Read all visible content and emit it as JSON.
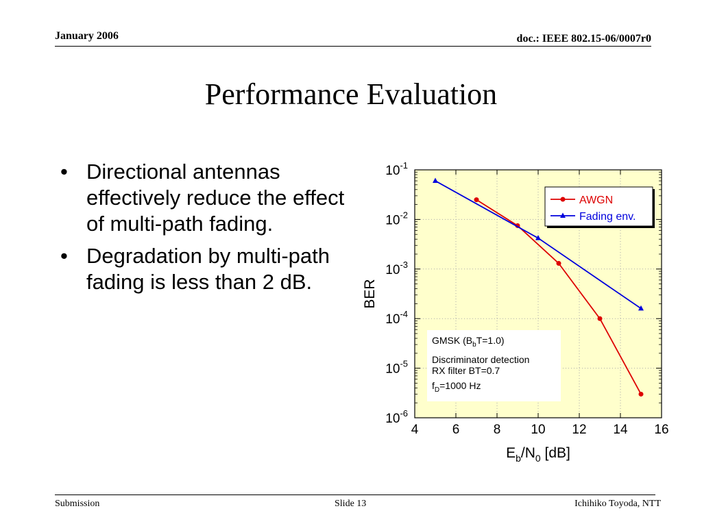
{
  "header": {
    "date": "January 2006",
    "doc": "doc.: IEEE 802.15-06/0007r0"
  },
  "slide": {
    "title": "Performance Evaluation",
    "bullets": [
      "Directional antennas effectively reduce the effect of multi-path fading.",
      "Degradation by multi-path fading is less than 2 dB."
    ]
  },
  "footer": {
    "left": "Submission",
    "center": "Slide 13",
    "right": "Ichihiko Toyoda, NTT"
  },
  "colors": {
    "plot_bg": "#ffffcc",
    "awgn": "#dd0000",
    "fading": "#0000dd"
  },
  "chart_data": {
    "type": "line",
    "xlabel": "Eb/N0 [dB]",
    "ylabel": "BER",
    "xlim": [
      4,
      16
    ],
    "ylim": [
      1e-06,
      0.1
    ],
    "yscale": "log",
    "xticks": [
      4,
      6,
      8,
      10,
      12,
      14,
      16
    ],
    "yticks": [
      -1,
      -2,
      -3,
      -4,
      -5,
      -6
    ],
    "grid": true,
    "legend_position": "top-right",
    "series": [
      {
        "name": "AWGN",
        "color": "#dd0000",
        "marker": "circle",
        "x": [
          7,
          9,
          11,
          13,
          15
        ],
        "y": [
          0.025,
          0.0075,
          0.0013,
          0.0001,
          3e-06
        ]
      },
      {
        "name": "Fading env.",
        "color": "#0000dd",
        "marker": "triangle",
        "x": [
          5,
          10,
          15
        ],
        "y": [
          0.06,
          0.0042,
          0.00016
        ]
      }
    ],
    "annotation": {
      "lines": [
        {
          "parts": [
            [
              "GMSK (B",
              ""
            ],
            [
              "b",
              "sub"
            ],
            [
              "T=1.0)",
              ""
            ]
          ]
        },
        {
          "parts": [
            [
              "Discriminator detection",
              ""
            ]
          ]
        },
        {
          "parts": [
            [
              "RX filter BT=0.7",
              ""
            ]
          ]
        },
        {
          "parts": [
            [
              "f",
              ""
            ],
            [
              "D",
              "sub"
            ],
            [
              "=1000 Hz",
              ""
            ]
          ]
        }
      ]
    }
  }
}
